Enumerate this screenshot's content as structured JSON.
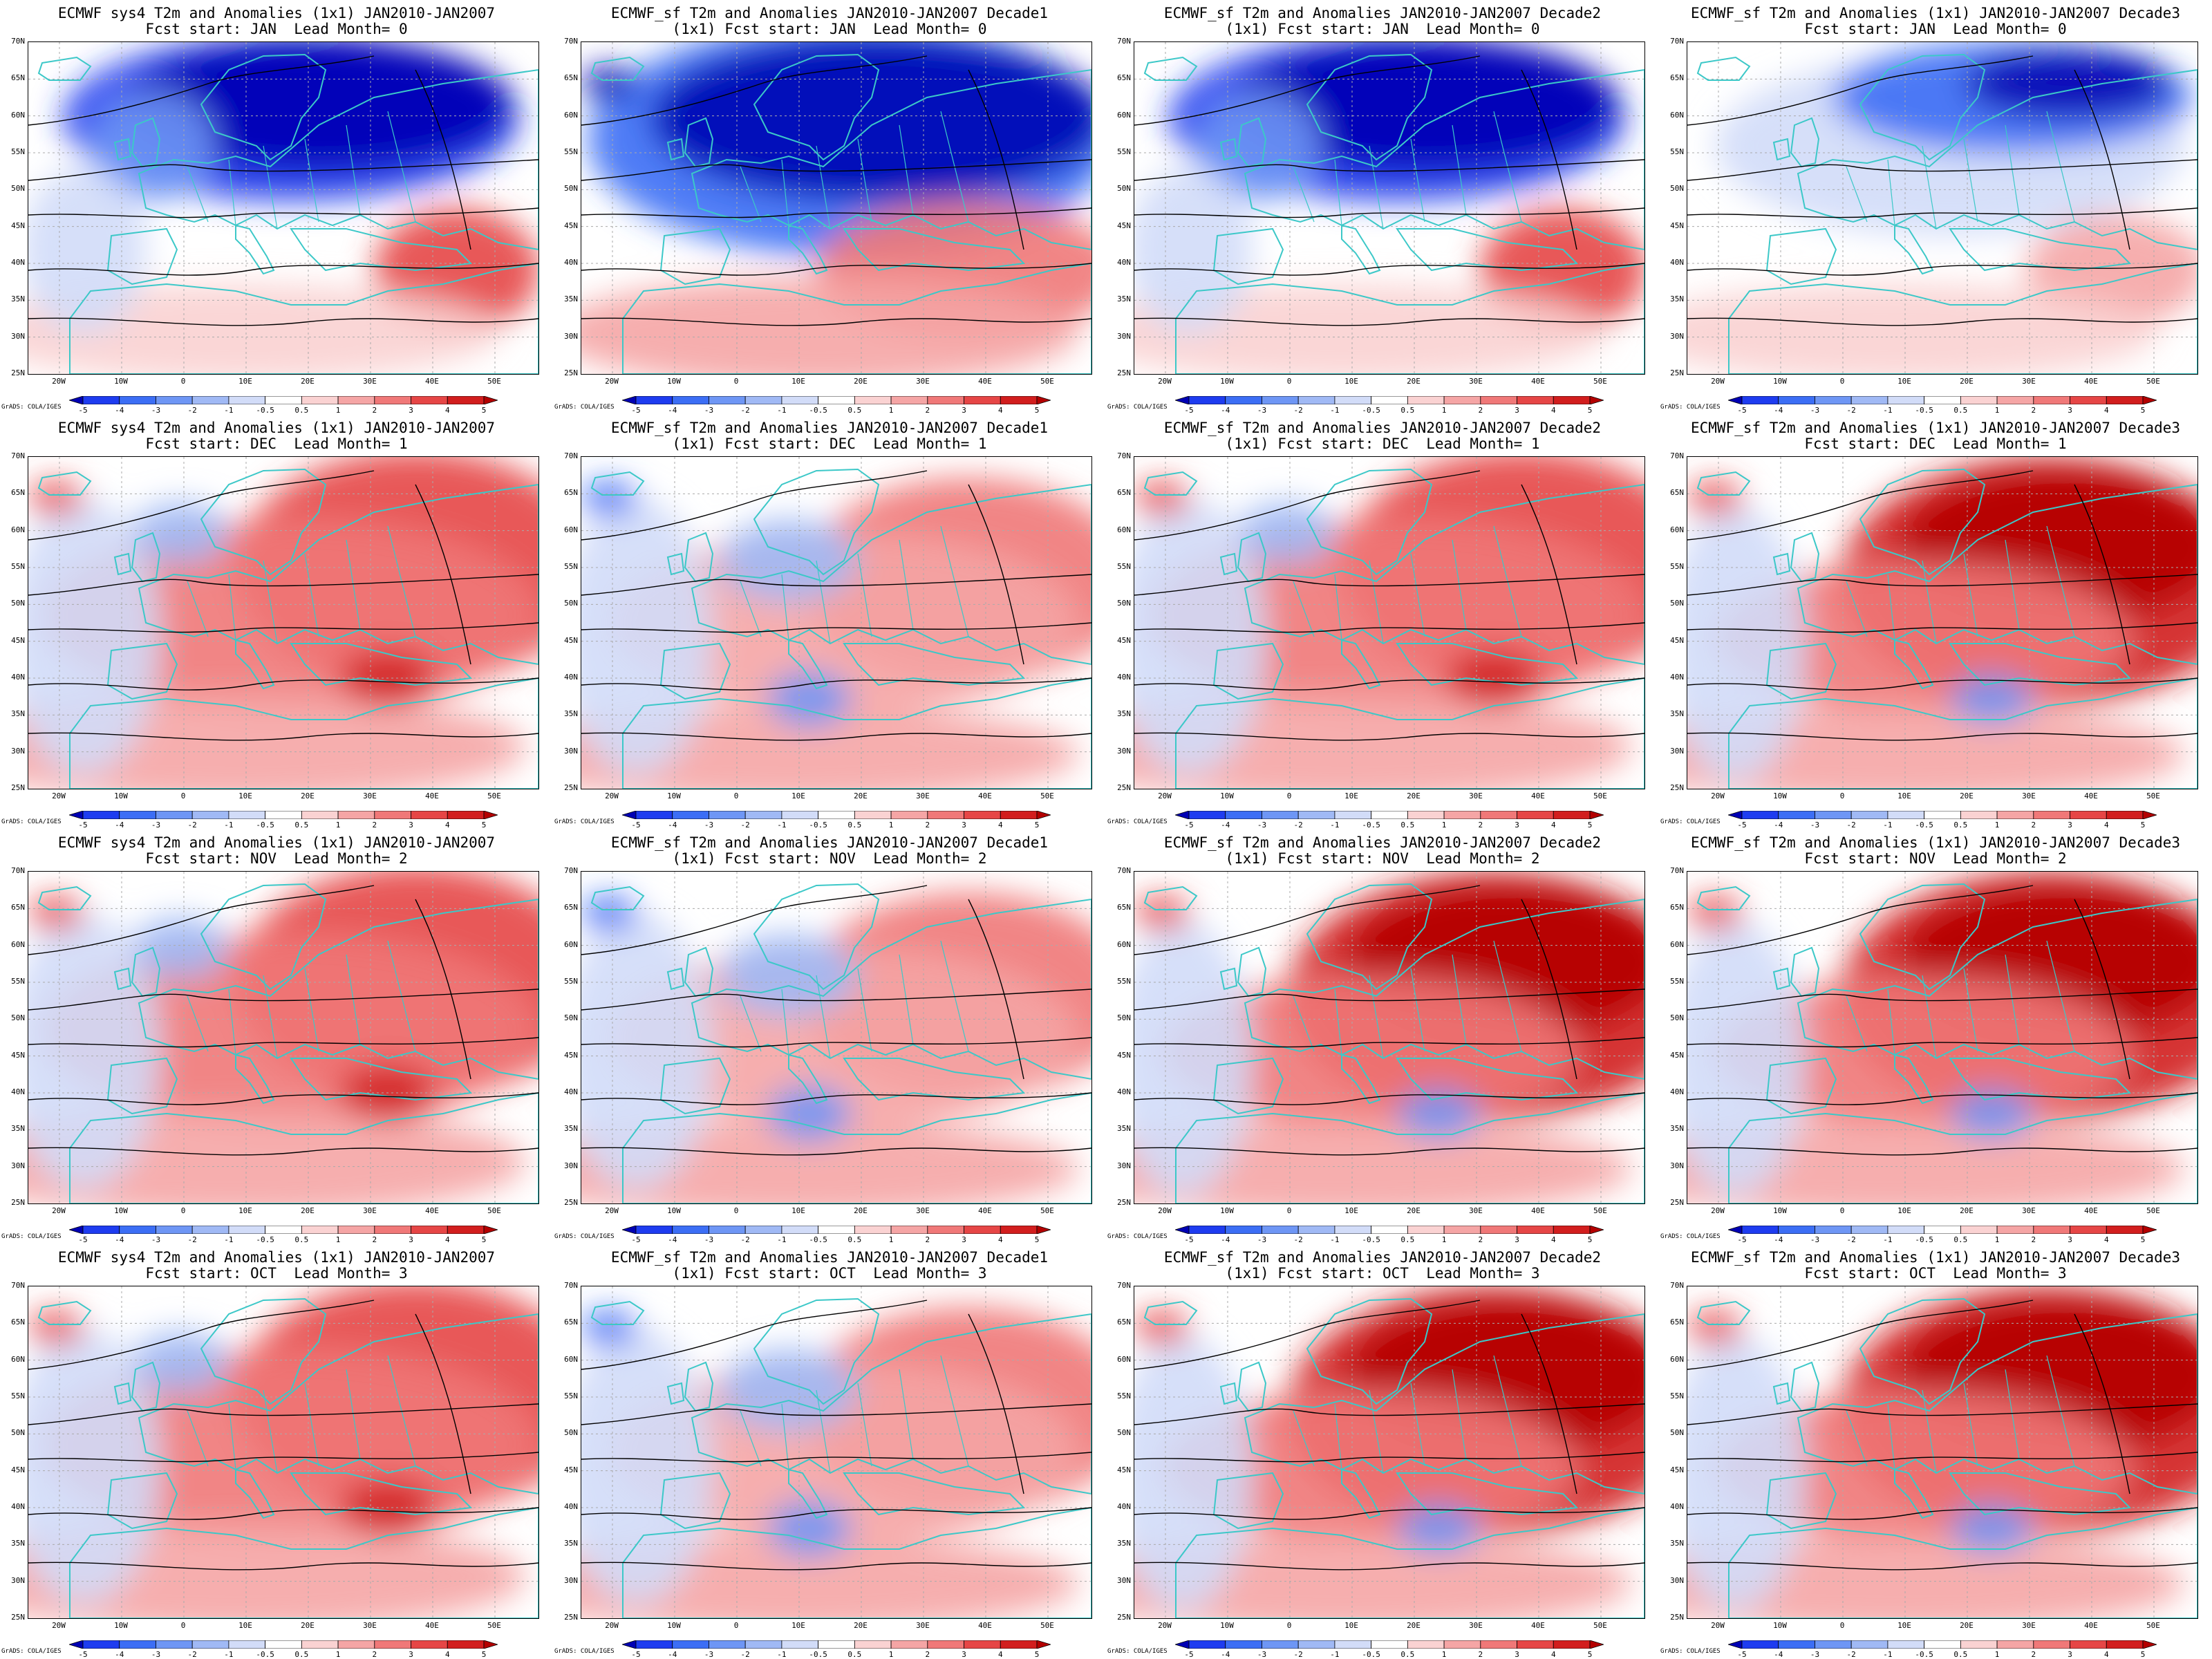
{
  "colorbar": {
    "labels": [
      "-5",
      "-4",
      "-3",
      "-2",
      "-1",
      "-0.5",
      "0.5",
      "1",
      "2",
      "3",
      "4",
      "5"
    ],
    "colors": [
      "#0000b4",
      "#1e3cf0",
      "#3c6ef5",
      "#6e96f5",
      "#a0b9f5",
      "#d2dcf8",
      "#ffffff",
      "#fad2d2",
      "#f5a5a5",
      "#f07878",
      "#e64646",
      "#d21e1e",
      "#b40000"
    ]
  },
  "credit": "GrADS: COLA/IGES",
  "ylabels": [
    "70N",
    "65N",
    "60N",
    "55N",
    "50N",
    "45N",
    "40N",
    "35N",
    "30N",
    "25N"
  ],
  "xlabels": [
    "20W",
    "10W",
    "0",
    "10E",
    "20E",
    "30E",
    "40E",
    "50E"
  ],
  "colors": {
    "coast": "#3cc8c8",
    "contour": "#000000",
    "grid": "#aaaaaa"
  },
  "panels": [
    {
      "row": 0,
      "col": 0,
      "title1": "ECMWF sys4 T2m and Anomalies (1x1) JAN2010-JAN2007",
      "title2": "Fcst start: JAN  Lead Month= 0",
      "anomaly": "cold"
    },
    {
      "row": 0,
      "col": 1,
      "title1": "ECMWF_sf T2m and Anomalies JAN2010-JAN2007 Decade1",
      "title2": "(1x1) Fcst start: JAN  Lead Month= 0",
      "anomaly": "cold-strong"
    },
    {
      "row": 0,
      "col": 2,
      "title1": "ECMWF_sf T2m and Anomalies JAN2010-JAN2007 Decade2",
      "title2": "(1x1) Fcst start: JAN  Lead Month= 0",
      "anomaly": "cold"
    },
    {
      "row": 0,
      "col": 3,
      "title1": "ECMWF_sf T2m and Anomalies (1x1) JAN2010-JAN2007 Decade3",
      "title2": "Fcst start: JAN  Lead Month= 0",
      "anomaly": "cold-weak"
    },
    {
      "row": 1,
      "col": 0,
      "title1": "ECMWF sys4 T2m and Anomalies (1x1) JAN2010-JAN2007",
      "title2": "Fcst start: DEC  Lead Month= 1",
      "anomaly": "warm"
    },
    {
      "row": 1,
      "col": 1,
      "title1": "ECMWF_sf T2m and Anomalies JAN2010-JAN2007 Decade1",
      "title2": "(1x1) Fcst start: DEC  Lead Month= 1",
      "anomaly": "warm-weak"
    },
    {
      "row": 1,
      "col": 2,
      "title1": "ECMWF_sf T2m and Anomalies JAN2010-JAN2007 Decade2",
      "title2": "(1x1) Fcst start: DEC  Lead Month= 1",
      "anomaly": "warm"
    },
    {
      "row": 1,
      "col": 3,
      "title1": "ECMWF_sf T2m and Anomalies (1x1) JAN2010-JAN2007 Decade3",
      "title2": "Fcst start: DEC  Lead Month= 1",
      "anomaly": "warm-strong"
    },
    {
      "row": 2,
      "col": 0,
      "title1": "ECMWF sys4 T2m and Anomalies (1x1) JAN2010-JAN2007",
      "title2": "Fcst start: NOV  Lead Month= 2",
      "anomaly": "warm"
    },
    {
      "row": 2,
      "col": 1,
      "title1": "ECMWF_sf T2m and Anomalies JAN2010-JAN2007 Decade1",
      "title2": "(1x1) Fcst start: NOV  Lead Month= 2",
      "anomaly": "warm-weak"
    },
    {
      "row": 2,
      "col": 2,
      "title1": "ECMWF_sf T2m and Anomalies JAN2010-JAN2007 Decade2",
      "title2": "(1x1) Fcst start: NOV  Lead Month= 2",
      "anomaly": "warm-strong"
    },
    {
      "row": 2,
      "col": 3,
      "title1": "ECMWF_sf T2m and Anomalies (1x1) JAN2010-JAN2007 Decade3",
      "title2": "Fcst start: NOV  Lead Month= 2",
      "anomaly": "warm-strong"
    },
    {
      "row": 3,
      "col": 0,
      "title1": "ECMWF sys4 T2m and Anomalies (1x1) JAN2010-JAN2007",
      "title2": "Fcst start: OCT  Lead Month= 3",
      "anomaly": "warm"
    },
    {
      "row": 3,
      "col": 1,
      "title1": "ECMWF_sf T2m and Anomalies JAN2010-JAN2007 Decade1",
      "title2": "(1x1) Fcst start: OCT  Lead Month= 3",
      "anomaly": "warm-weak"
    },
    {
      "row": 3,
      "col": 2,
      "title1": "ECMWF_sf T2m and Anomalies JAN2010-JAN2007 Decade2",
      "title2": "(1x1) Fcst start: OCT  Lead Month= 3",
      "anomaly": "warm-strong"
    },
    {
      "row": 3,
      "col": 3,
      "title1": "ECMWF_sf T2m and Anomalies (1x1) JAN2010-JAN2007 Decade3",
      "title2": "Fcst start: OCT  Lead Month= 3",
      "anomaly": "warm-strong"
    }
  ]
}
